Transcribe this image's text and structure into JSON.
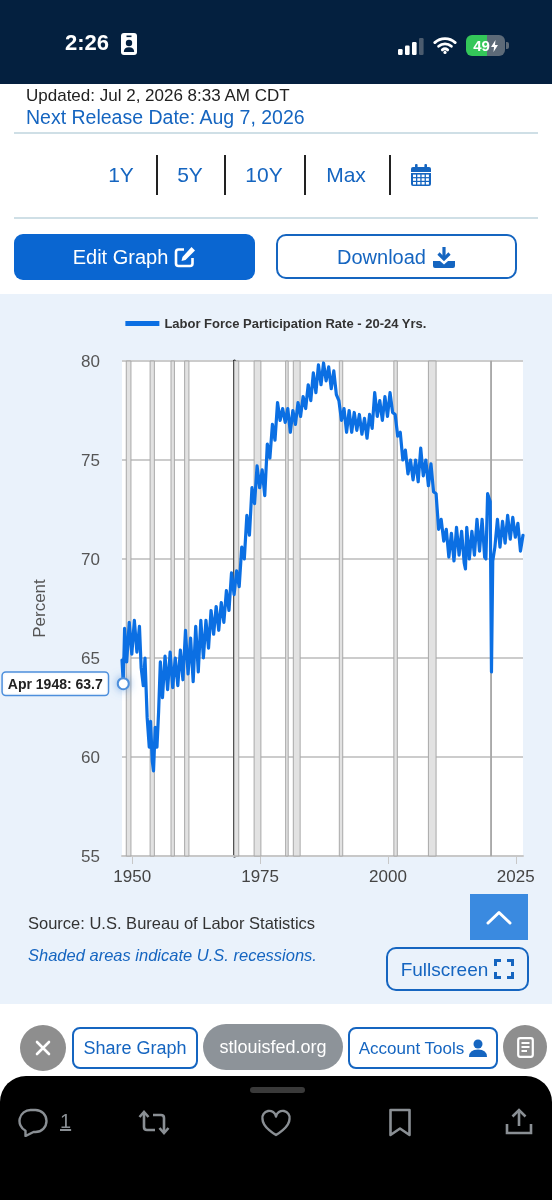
{
  "chart_data": {
    "type": "line",
    "ylabel": "Percent",
    "legend": "top",
    "grid": "y",
    "x": [
      "1948-01",
      "1948-04",
      "1948-07",
      "1948-12",
      "1949-06",
      "1949-12",
      "1950-06",
      "1950-12",
      "1951-06",
      "1951-10",
      "1952-03",
      "1952-07",
      "1952-12",
      "1953-05",
      "1953-08",
      "1953-12",
      "1954-03",
      "1954-07",
      "1954-11",
      "1955-03",
      "1955-07",
      "1955-12",
      "1956-06",
      "1956-12",
      "1957-06",
      "1957-12",
      "1958-06",
      "1958-12",
      "1959-06",
      "1959-12",
      "1960-06",
      "1960-12",
      "1961-06",
      "1961-12",
      "1962-06",
      "1962-12",
      "1963-06",
      "1963-12",
      "1964-06",
      "1964-12",
      "1965-06",
      "1965-12",
      "1966-06",
      "1966-12",
      "1967-06",
      "1967-12",
      "1968-06",
      "1968-12",
      "1969-06",
      "1969-12",
      "1970-06",
      "1970-12",
      "1971-06",
      "1971-12",
      "1972-06",
      "1972-12",
      "1973-06",
      "1973-12",
      "1974-06",
      "1974-12",
      "1975-06",
      "1975-12",
      "1976-06",
      "1976-12",
      "1977-06",
      "1977-12",
      "1978-06",
      "1978-12",
      "1979-06",
      "1979-12",
      "1980-06",
      "1980-12",
      "1981-06",
      "1981-12",
      "1982-06",
      "1982-12",
      "1983-06",
      "1983-12",
      "1984-06",
      "1984-12",
      "1985-06",
      "1985-12",
      "1986-06",
      "1986-12",
      "1987-06",
      "1987-12",
      "1988-06",
      "1988-12",
      "1989-06",
      "1989-12",
      "1990-06",
      "1990-12",
      "1991-06",
      "1991-12",
      "1992-06",
      "1992-12",
      "1993-06",
      "1993-12",
      "1994-06",
      "1994-12",
      "1995-06",
      "1995-12",
      "1996-06",
      "1996-12",
      "1997-06",
      "1997-12",
      "1998-06",
      "1998-12",
      "1999-06",
      "1999-12",
      "2000-06",
      "2000-12",
      "2001-06",
      "2001-12",
      "2002-06",
      "2002-12",
      "2003-06",
      "2003-12",
      "2004-06",
      "2004-12",
      "2005-06",
      "2005-12",
      "2006-06",
      "2006-12",
      "2007-06",
      "2007-12",
      "2008-06",
      "2008-12",
      "2009-06",
      "2009-12",
      "2010-06",
      "2010-12",
      "2011-06",
      "2011-12",
      "2012-06",
      "2012-12",
      "2013-06",
      "2013-12",
      "2014-06",
      "2014-12",
      "2015-03",
      "2015-06",
      "2015-12",
      "2016-06",
      "2016-12",
      "2017-06",
      "2017-12",
      "2018-06",
      "2018-12",
      "2019-03",
      "2019-07",
      "2020-01",
      "2020-04",
      "2020-07",
      "2020-12",
      "2021-06",
      "2021-12",
      "2022-06",
      "2022-12",
      "2023-06",
      "2023-12",
      "2024-06",
      "2024-12",
      "2025-06",
      "2025-12",
      "2026-06"
    ],
    "series": [
      {
        "name": "Labor Force Participation Rate - 20-24 Yrs.",
        "color": "#0b6fe3",
        "values": [
          64.9,
          63.7,
          66.5,
          64.8,
          66.8,
          65.2,
          66.9,
          65.3,
          66.6,
          64.5,
          63.6,
          65.0,
          62.0,
          60.5,
          61.8,
          59.8,
          59.3,
          61.5,
          60.5,
          62.3,
          64.8,
          63.0,
          65.1,
          63.4,
          65.3,
          63.5,
          65.0,
          63.6,
          65.4,
          63.9,
          66.4,
          64.2,
          66.0,
          63.8,
          66.6,
          64.3,
          66.9,
          65.0,
          66.9,
          65.5,
          67.4,
          66.2,
          67.6,
          66.4,
          67.8,
          66.8,
          68.4,
          67.4,
          69.3,
          68.2,
          69.4,
          68.6,
          70.6,
          70.0,
          72.2,
          71.2,
          73.6,
          72.8,
          74.7,
          73.6,
          74.5,
          73.2,
          75.8,
          75.1,
          76.8,
          76.0,
          77.9,
          77.0,
          77.6,
          76.9,
          77.6,
          76.4,
          77.5,
          76.8,
          77.9,
          77.2,
          78.2,
          77.6,
          78.8,
          78.0,
          79.4,
          78.4,
          79.8,
          78.8,
          79.9,
          79.0,
          79.7,
          78.6,
          79.5,
          78.3,
          78.0,
          77.0,
          77.6,
          76.4,
          77.5,
          76.4,
          77.4,
          76.5,
          77.3,
          76.3,
          77.1,
          76.1,
          77.3,
          76.6,
          78.4,
          77.2,
          78.0,
          77.0,
          78.2,
          77.2,
          78.4,
          77.4,
          77.3,
          76.2,
          76.4,
          75.0,
          75.5,
          74.3,
          75.0,
          74.0,
          75.0,
          73.9,
          75.6,
          74.2,
          75.0,
          73.7,
          74.8,
          73.4,
          73.3,
          71.5,
          72.0,
          70.9,
          71.5,
          70.1,
          71.3,
          69.9,
          71.6,
          70.2,
          71.4,
          69.8,
          69.5,
          71.6,
          70.0,
          71.4,
          70.2,
          72.0,
          70.4,
          72.0,
          70.1,
          70.0,
          73.3,
          72.9,
          64.3,
          69.9,
          70.6,
          72.0,
          70.6,
          71.9,
          70.8,
          72.2,
          71.0,
          72.1,
          71.1,
          71.8,
          70.4,
          71.2
        ]
      }
    ],
    "xlim": [
      "1948-01",
      "2026-06"
    ],
    "xticks": [
      "1950",
      "1975",
      "2000",
      "2025"
    ],
    "ylim": [
      55,
      80
    ],
    "yticks": [
      55,
      60,
      65,
      70,
      75,
      80
    ],
    "bands": [
      {
        "axis": "x",
        "from": "1948-11",
        "to": "1949-10",
        "color": "#e2e2e2"
      },
      {
        "axis": "x",
        "from": "1953-07",
        "to": "1954-05",
        "color": "#e2e2e2"
      },
      {
        "axis": "x",
        "from": "1957-08",
        "to": "1958-04",
        "color": "#e2e2e2"
      },
      {
        "axis": "x",
        "from": "1960-04",
        "to": "1961-02",
        "color": "#e2e2e2"
      },
      {
        "axis": "x",
        "from": "1969-12",
        "to": "1970-11",
        "color": "#e2e2e2"
      },
      {
        "axis": "x",
        "from": "1973-11",
        "to": "1975-03",
        "color": "#e2e2e2"
      },
      {
        "axis": "x",
        "from": "1980-01",
        "to": "1980-07",
        "color": "#e2e2e2"
      },
      {
        "axis": "x",
        "from": "1981-07",
        "to": "1982-11",
        "color": "#e2e2e2"
      },
      {
        "axis": "x",
        "from": "1990-07",
        "to": "1991-03",
        "color": "#e2e2e2"
      },
      {
        "axis": "x",
        "from": "2001-03",
        "to": "2001-11",
        "color": "#e2e2e2"
      },
      {
        "axis": "x",
        "from": "2007-12",
        "to": "2009-06",
        "color": "#e2e2e2"
      },
      {
        "axis": "x",
        "from": "2020-02",
        "to": "2020-04",
        "color": "#e2e2e2"
      }
    ],
    "annotations": [
      "Updated: Jul 2, 2026 8:33 AM CDT",
      "Next Release Date: Aug 7, 2026",
      "1Y",
      "5Y",
      "10Y",
      "Max",
      "Edit Graph",
      "Download",
      "Source: U.S. Bureau of Labor Statistics",
      "Shaded areas indicate U.S. recessions.",
      "Fullscreen",
      "Share Graph",
      "stlouisfed.org",
      "Account Tools",
      "2:26",
      "49",
      "1",
      {
        "text": "Apr 1948: 63.7",
        "x": "1948-04",
        "y": 63.7
      }
    ]
  }
}
